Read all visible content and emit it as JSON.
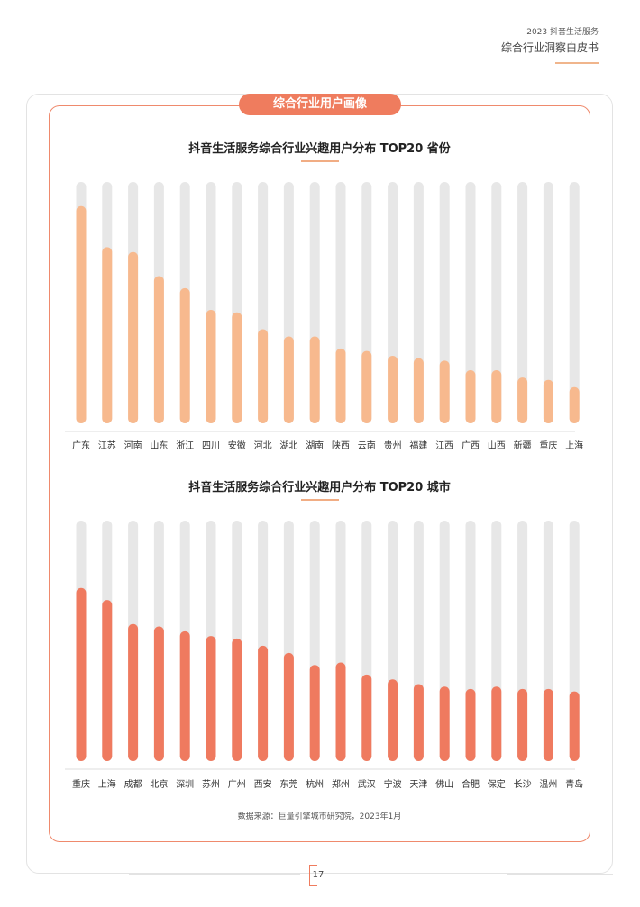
{
  "header": {
    "subtitle": "2023 抖音生活服务",
    "title": "综合行业洞察白皮书"
  },
  "section_title": "综合行业用户画像",
  "source": "数据来源：巨量引擎城市研究院，2023年1月",
  "page_number": "17",
  "colors": {
    "accent": "#ef7c5e",
    "province_bar": "#f7b98e",
    "city_bar": "#ef7a5f",
    "track": "#e7e7e7"
  },
  "chart_data": [
    {
      "type": "bar",
      "title": "抖音生活服务综合行业兴趣用户分布 TOP20 省份",
      "categories": [
        "广东",
        "江苏",
        "河南",
        "山东",
        "浙江",
        "四川",
        "安徽",
        "河北",
        "湖北",
        "湖南",
        "陕西",
        "云南",
        "贵州",
        "福建",
        "江西",
        "广西",
        "山西",
        "新疆",
        "重庆",
        "上海"
      ],
      "values": [
        90,
        73,
        71,
        61,
        56,
        47,
        46,
        39,
        36,
        36,
        31,
        30,
        28,
        27,
        26,
        22,
        22,
        19,
        18,
        15
      ],
      "ylim": [
        0,
        100
      ],
      "grid": false,
      "legend": "none"
    },
    {
      "type": "bar",
      "title": "抖音生活服务综合行业兴趣用户分布 TOP20 城市",
      "categories": [
        "重庆",
        "上海",
        "成都",
        "北京",
        "深圳",
        "苏州",
        "广州",
        "西安",
        "东莞",
        "杭州",
        "郑州",
        "武汉",
        "宁波",
        "天津",
        "佛山",
        "合肥",
        "保定",
        "长沙",
        "温州",
        "青岛"
      ],
      "values": [
        72,
        67,
        57,
        56,
        54,
        52,
        51,
        48,
        45,
        40,
        41,
        36,
        34,
        32,
        31,
        30,
        31,
        30,
        30,
        29
      ],
      "ylim": [
        0,
        100
      ],
      "grid": false,
      "legend": "none"
    }
  ]
}
